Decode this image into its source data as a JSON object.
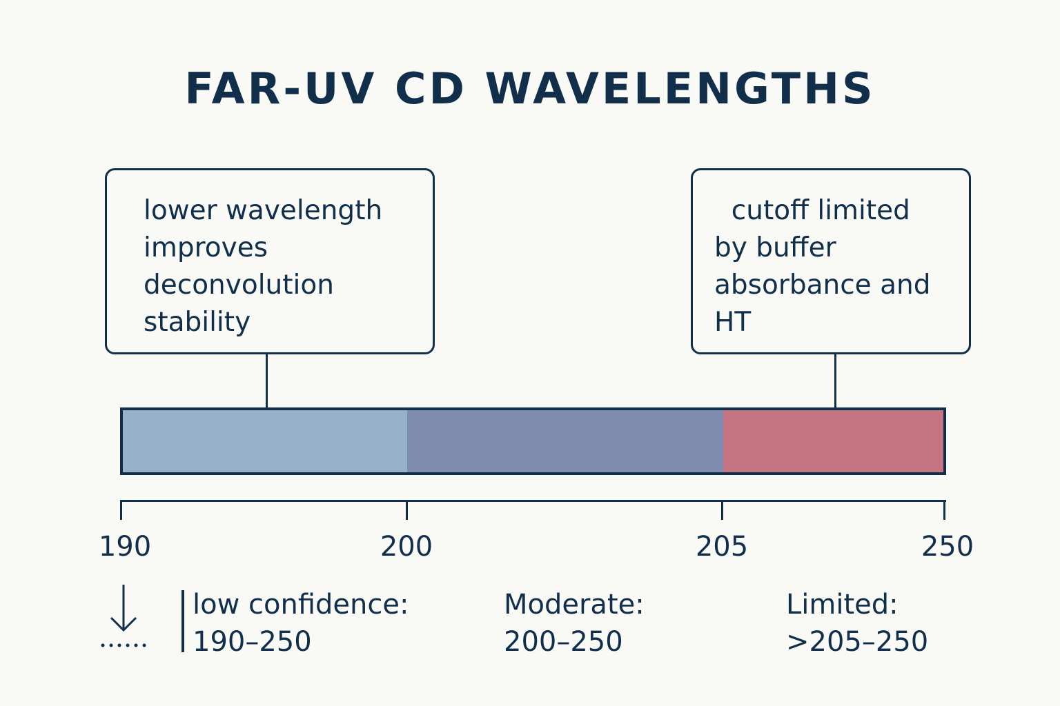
{
  "title": "FAR-UV CD WAVELENGTHS",
  "callouts": [
    {
      "lines": [
        "lower wavelength",
        "improves",
        "deconvolution",
        "stability"
      ]
    },
    {
      "lines": [
        "  cutoff limited",
        "by buffer",
        "absorbance and",
        "HT"
      ]
    }
  ],
  "bar_segments": [
    {
      "from": 190,
      "to": 200,
      "color": "#97b1c8"
    },
    {
      "from": 200,
      "to": 205,
      "color": "#7e8cad"
    },
    {
      "from": 205,
      "to": 250,
      "color": "#c57581"
    }
  ],
  "axis_ticks": [
    "190",
    "200",
    "205",
    "250"
  ],
  "legend": [
    {
      "label": "low confidence:",
      "range": "190–250"
    },
    {
      "label": "Moderate:",
      "range": "200–250"
    },
    {
      "label": "Limited:",
      "range": ">205–250"
    }
  ],
  "colors": {
    "ink": "#112f4b",
    "background": "#f9f9f6"
  },
  "icons": {
    "legend_marker": "down-arrow-icon"
  }
}
